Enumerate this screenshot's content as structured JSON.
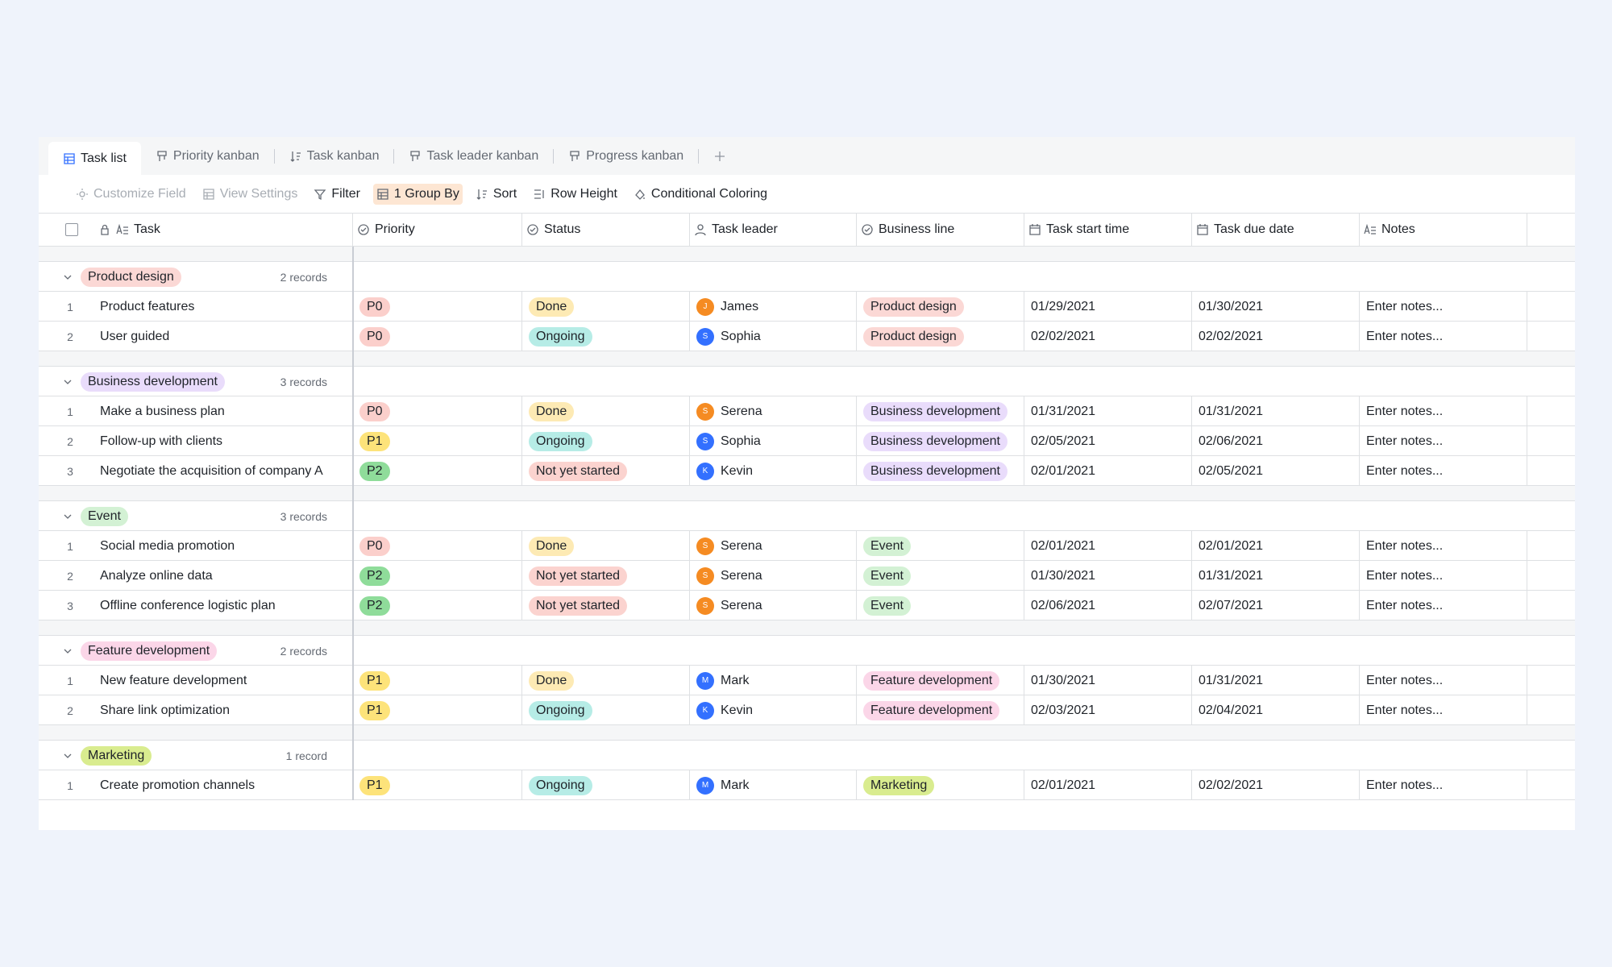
{
  "tabs": [
    "Task list",
    "Priority kanban",
    "Task kanban",
    "Task leader kanban",
    "Progress kanban"
  ],
  "toolbar": [
    "Customize Field",
    "View Settings",
    "Filter",
    "1 Group By",
    "Sort",
    "Row Height",
    "Conditional Coloring"
  ],
  "columns": [
    "Task",
    "Priority",
    "Status",
    "Task leader",
    "Business line",
    "Task start time",
    "Task due date",
    "Notes"
  ],
  "priority_options": [
    {
      "label": "P0",
      "color": "#fbcfcb"
    },
    {
      "label": "P1",
      "color": "#fde37a"
    },
    {
      "label": "P2",
      "color": "#8fdc9a"
    }
  ],
  "status_options": [
    {
      "label": "Done",
      "color": "#fdeab4"
    },
    {
      "label": "Ongoing",
      "color": "#b6ece6"
    },
    {
      "label": "Not yet started",
      "color": "#fbd3cf"
    }
  ],
  "leader_colors": [
    {
      "name": "James",
      "color": "#f58b22"
    },
    {
      "name": "Sophia",
      "color": "#3370ff"
    },
    {
      "name": "Serena",
      "color": "#f58b22"
    },
    {
      "name": "Kevin",
      "color": "#3370ff"
    },
    {
      "name": "Mark",
      "color": "#3370ff"
    }
  ],
  "groups": [
    {
      "name": "Product design",
      "color": "#fbd8d5",
      "count": "2 records",
      "rows": [
        {
          "no": 1,
          "task": "Product features",
          "priority": "P0",
          "status": "Done",
          "initial": "J",
          "leader": "James",
          "business": "Product design",
          "start": "01/29/2021",
          "due": "01/30/2021",
          "notes": "Enter notes..."
        },
        {
          "no": 2,
          "task": "User guided",
          "priority": "P0",
          "status": "Ongoing",
          "initial": "S",
          "leader": "Sophia",
          "business": "Product design",
          "start": "02/02/2021",
          "due": "02/02/2021",
          "notes": "Enter notes..."
        }
      ]
    },
    {
      "name": "Business development",
      "color": "#e9dcfb",
      "count": "3 records",
      "rows": [
        {
          "no": 1,
          "task": "Make a business plan",
          "priority": "P0",
          "status": "Done",
          "initial": "S",
          "leader": "Serena",
          "business": "Business development",
          "start": "01/31/2021",
          "due": "01/31/2021",
          "notes": "Enter notes..."
        },
        {
          "no": 2,
          "task": "Follow-up with clients",
          "priority": "P1",
          "status": "Ongoing",
          "initial": "S",
          "leader": "Sophia",
          "business": "Business development",
          "start": "02/05/2021",
          "due": "02/06/2021",
          "notes": "Enter notes..."
        },
        {
          "no": 3,
          "task": "Negotiate the acquisition of company A",
          "priority": "P2",
          "status": "Not yet started",
          "initial": "K",
          "leader": "Kevin",
          "business": "Business development",
          "start": "02/01/2021",
          "due": "02/05/2021",
          "notes": "Enter notes..."
        }
      ]
    },
    {
      "name": "Event",
      "color": "#d3f1d4",
      "count": "3 records",
      "rows": [
        {
          "no": 1,
          "task": "Social media promotion",
          "priority": "P0",
          "status": "Done",
          "initial": "S",
          "leader": "Serena",
          "business": "Event",
          "start": "02/01/2021",
          "due": "02/01/2021",
          "notes": "Enter notes..."
        },
        {
          "no": 2,
          "task": "Analyze online data",
          "priority": "P2",
          "status": "Not yet started",
          "initial": "S",
          "leader": "Serena",
          "business": "Event",
          "start": "01/30/2021",
          "due": "01/31/2021",
          "notes": "Enter notes..."
        },
        {
          "no": 3,
          "task": "Offline conference logistic plan",
          "priority": "P2",
          "status": "Not yet started",
          "initial": "S",
          "leader": "Serena",
          "business": "Event",
          "start": "02/06/2021",
          "due": "02/07/2021",
          "notes": "Enter notes..."
        }
      ]
    },
    {
      "name": "Feature development",
      "color": "#fbd6e8",
      "count": "2 records",
      "rows": [
        {
          "no": 1,
          "task": "New feature development",
          "priority": "P1",
          "status": "Done",
          "initial": "M",
          "leader": "Mark",
          "business": "Feature development",
          "start": "01/30/2021",
          "due": "01/31/2021",
          "notes": "Enter notes..."
        },
        {
          "no": 2,
          "task": "Share link optimization",
          "priority": "P1",
          "status": "Ongoing",
          "initial": "K",
          "leader": "Kevin",
          "business": "Feature development",
          "start": "02/03/2021",
          "due": "02/04/2021",
          "notes": "Enter notes..."
        }
      ]
    },
    {
      "name": "Marketing",
      "color": "#d9ec8f",
      "count": "1 record",
      "rows": [
        {
          "no": 1,
          "task": "Create promotion channels",
          "priority": "P1",
          "status": "Ongoing",
          "initial": "M",
          "leader": "Mark",
          "business": "Marketing",
          "start": "02/01/2021",
          "due": "02/02/2021",
          "notes": "Enter notes..."
        }
      ]
    }
  ]
}
